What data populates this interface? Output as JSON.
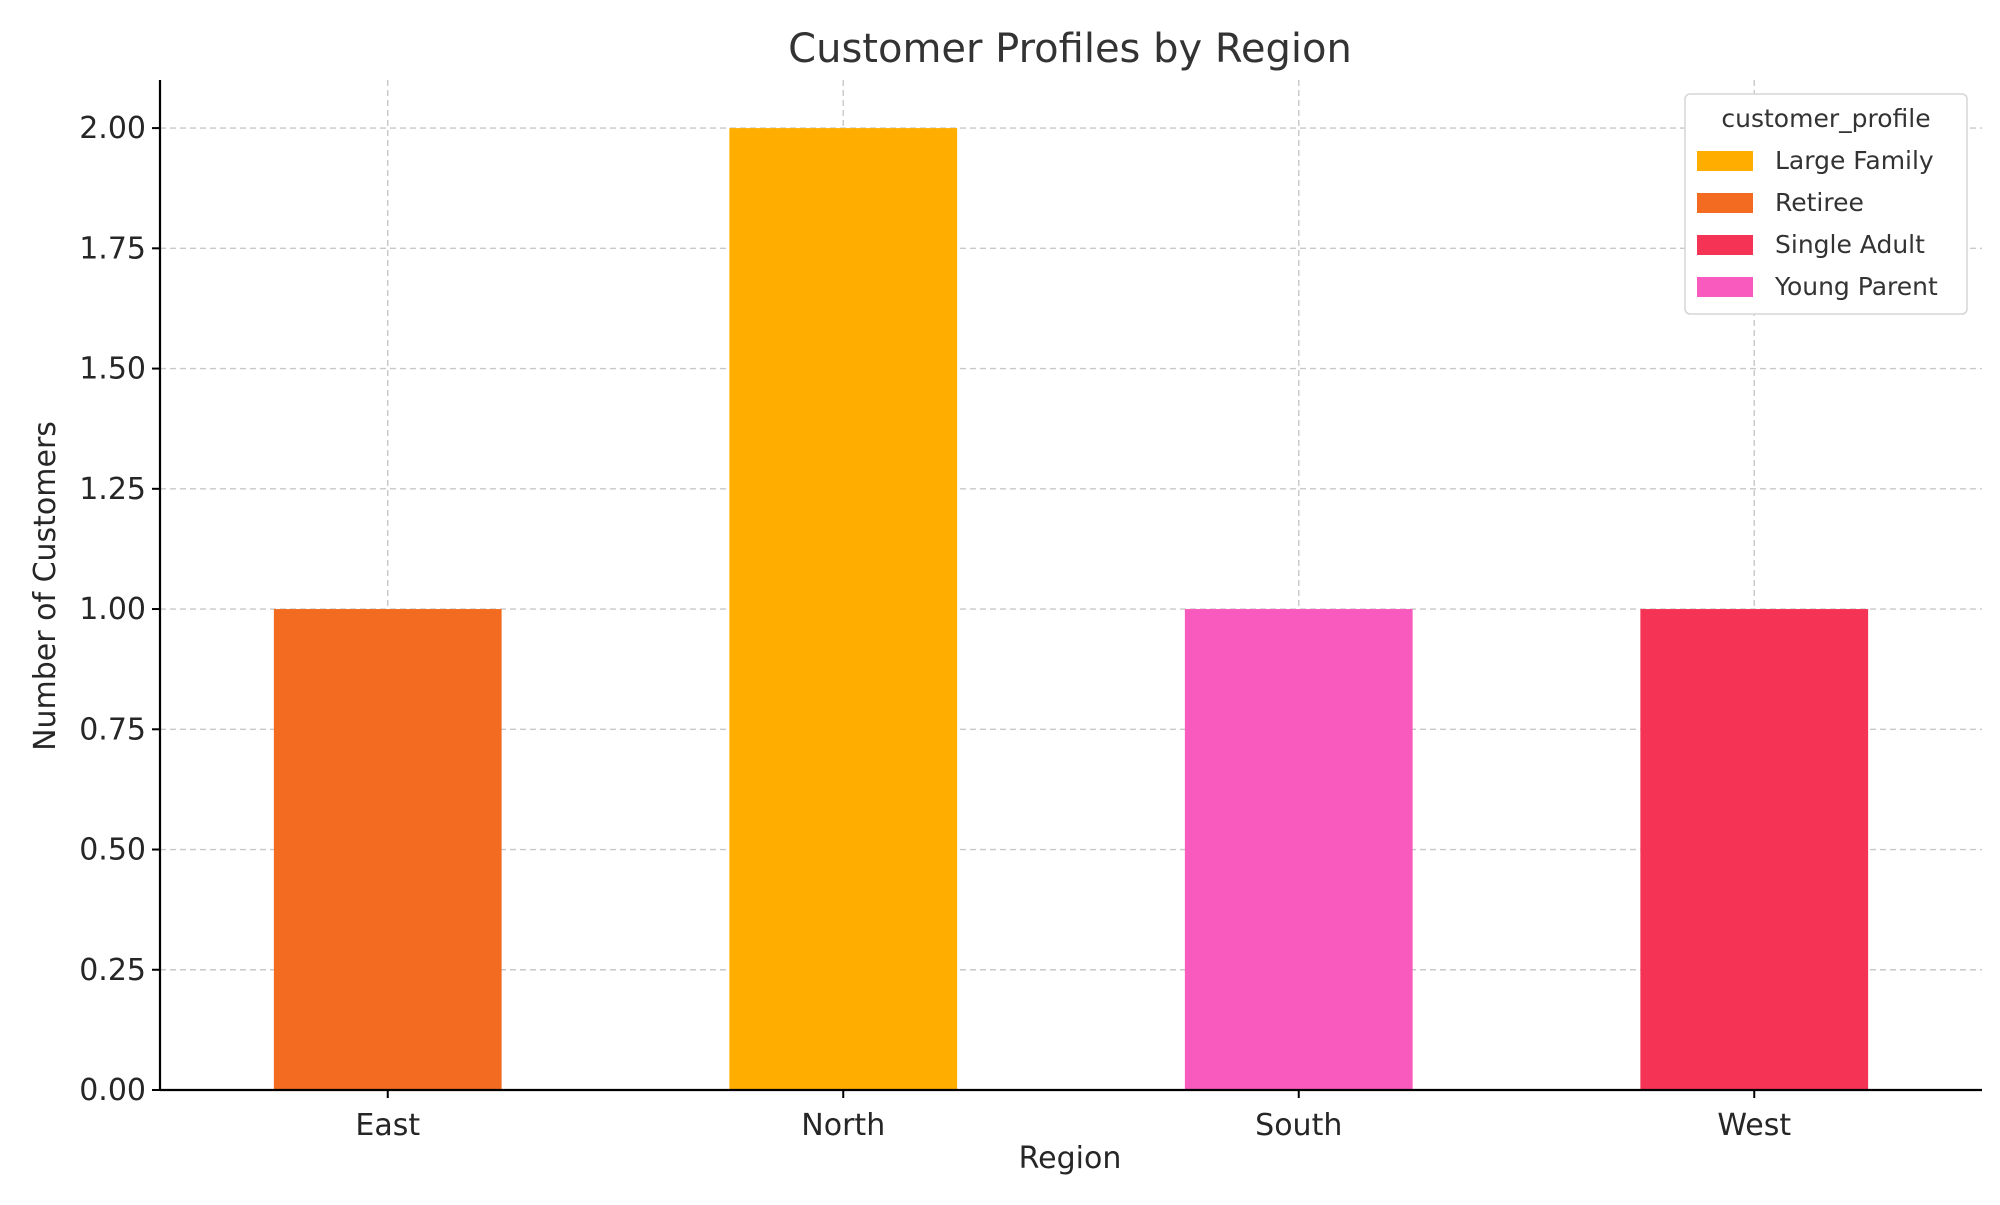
{
  "chart_data": {
    "type": "bar",
    "stacked": true,
    "title": "Customer Profiles by Region",
    "xlabel": "Region",
    "ylabel": "Number of Customers",
    "categories": [
      "East",
      "North",
      "South",
      "West"
    ],
    "ylim": [
      0,
      2.1
    ],
    "yticks": [
      0,
      0.25,
      0.5,
      0.75,
      1.0,
      1.25,
      1.5,
      1.75,
      2.0
    ],
    "ytick_labels": [
      "0.00",
      "0.25",
      "0.50",
      "0.75",
      "1.00",
      "1.25",
      "1.50",
      "1.75",
      "2.00"
    ],
    "grid": true,
    "legend": {
      "title": "customer_profile",
      "placement": "top-right"
    },
    "series": [
      {
        "name": "Large Family",
        "color": "#FFAE00",
        "values": [
          0,
          2,
          0,
          0
        ]
      },
      {
        "name": "Retiree",
        "color": "#F26B21",
        "values": [
          1,
          0,
          0,
          0
        ]
      },
      {
        "name": "Single Adult",
        "color": "#F53354",
        "values": [
          0,
          0,
          0,
          1
        ]
      },
      {
        "name": "Young Parent",
        "color": "#F95ABE",
        "values": [
          0,
          0,
          1,
          0
        ]
      }
    ]
  }
}
